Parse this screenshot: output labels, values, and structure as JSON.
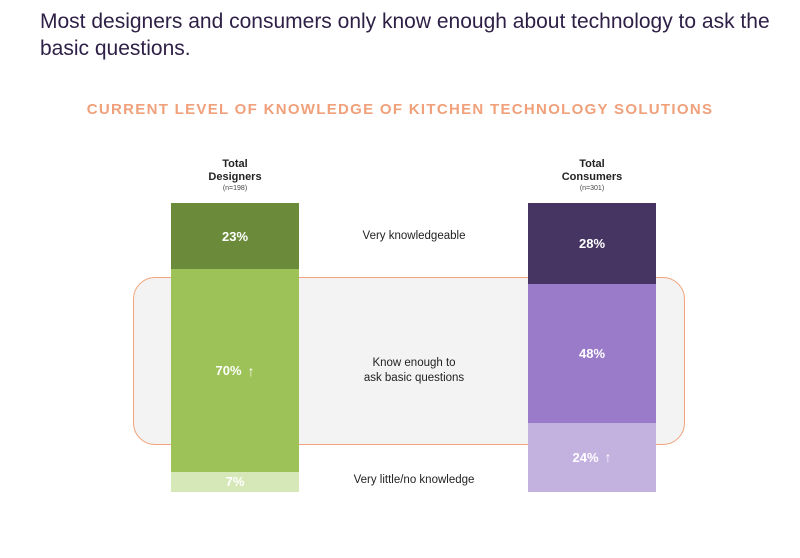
{
  "headline": "Most designers and consumers only know enough about technology to ask the basic questions.",
  "chart_data": {
    "type": "bar",
    "title": "CURRENT LEVEL OF KNOWLEDGE OF KITCHEN TECHNOLOGY SOLUTIONS",
    "categories": [
      "Very knowledgeable",
      "Know enough to ask basic questions",
      "Very little/no knowledge"
    ],
    "category_lines": [
      [
        "Very knowledgeable"
      ],
      [
        "Know enough to",
        "ask basic questions"
      ],
      [
        "Very little/no knowledge"
      ]
    ],
    "series": [
      {
        "name": "Total Designers",
        "header_lines": [
          "Total",
          "Designers"
        ],
        "n_label": "(n=198)",
        "values": [
          23,
          70,
          7
        ],
        "labels": [
          "23%",
          "70%",
          "7%"
        ],
        "up_arrow": [
          false,
          true,
          false
        ],
        "colors": [
          "#6b8b3a",
          "#9dc257",
          "#d7e8b8"
        ]
      },
      {
        "name": "Total Consumers",
        "header_lines": [
          "Total",
          "Consumers"
        ],
        "n_label": "(n=301)",
        "values": [
          28,
          48,
          24
        ],
        "labels": [
          "28%",
          "48%",
          "24%"
        ],
        "up_arrow": [
          false,
          false,
          true
        ],
        "colors": [
          "#463563",
          "#9a7bc9",
          "#c3b1e0"
        ]
      }
    ],
    "highlight": "Know enough to ask basic questions",
    "highlight_color": "#f2a27c",
    "ylim": [
      0,
      100
    ]
  }
}
